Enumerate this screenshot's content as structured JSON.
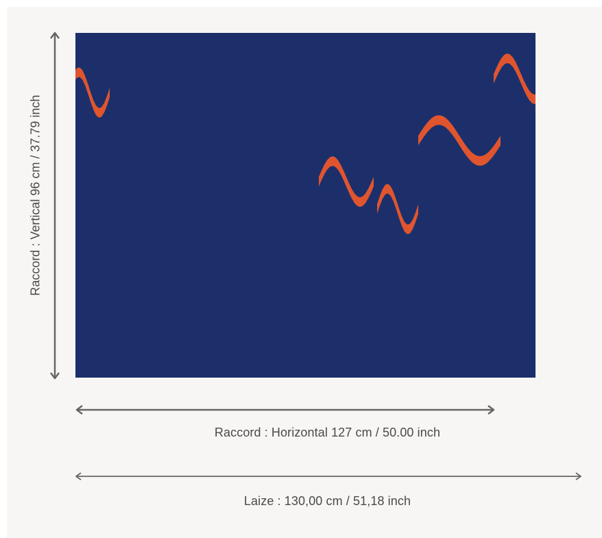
{
  "labels": {
    "vertical_repeat": "Raccord : Vertical 96 cm / 37.79 inch",
    "horizontal_repeat": "Raccord : Horizontal 127 cm / 50.00 inch",
    "fabric_width": "Laize : 130,00 cm / 51,18 inch"
  },
  "colors": {
    "background": "#f7f6f4",
    "arrow": "#555555",
    "text": "#4a4a4a",
    "pattern_navy": "#1c2f6b",
    "pattern_olive": "#7d8a2c",
    "pattern_light_blue": "#8fb6c8",
    "pattern_orange": "#e0552e",
    "pattern_cream": "#e9e3d6"
  }
}
